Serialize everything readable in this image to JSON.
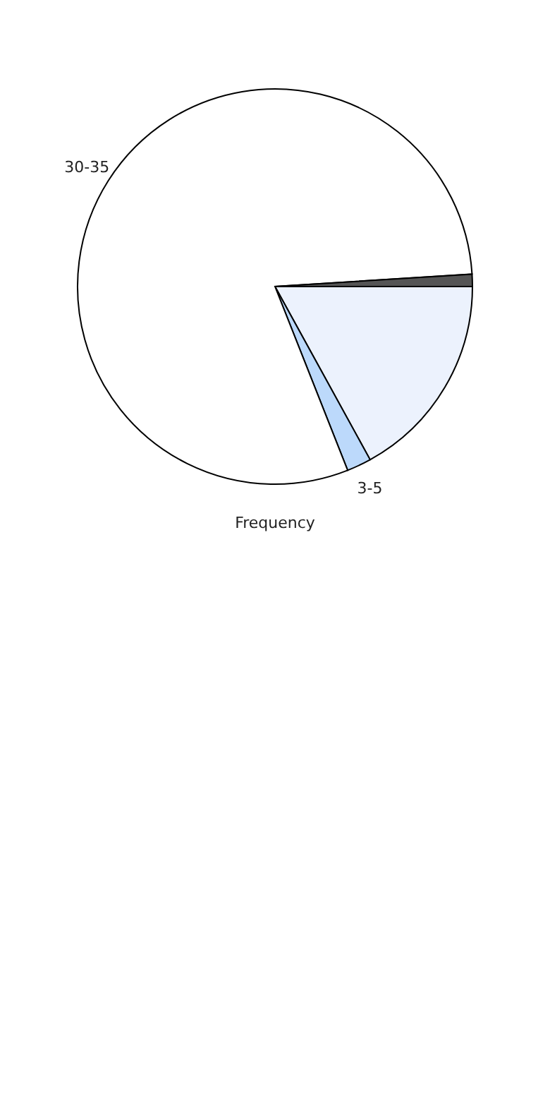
{
  "chart_data": {
    "type": "pie",
    "xlabel": "Frequency",
    "categories": [
      null,
      "3-5",
      "30-35",
      null
    ],
    "values": [
      17,
      2,
      80,
      1
    ],
    "colors": [
      "#ecf2fd",
      "#bcd9fb",
      "#ffffff",
      "#555555"
    ],
    "legend": false
  }
}
